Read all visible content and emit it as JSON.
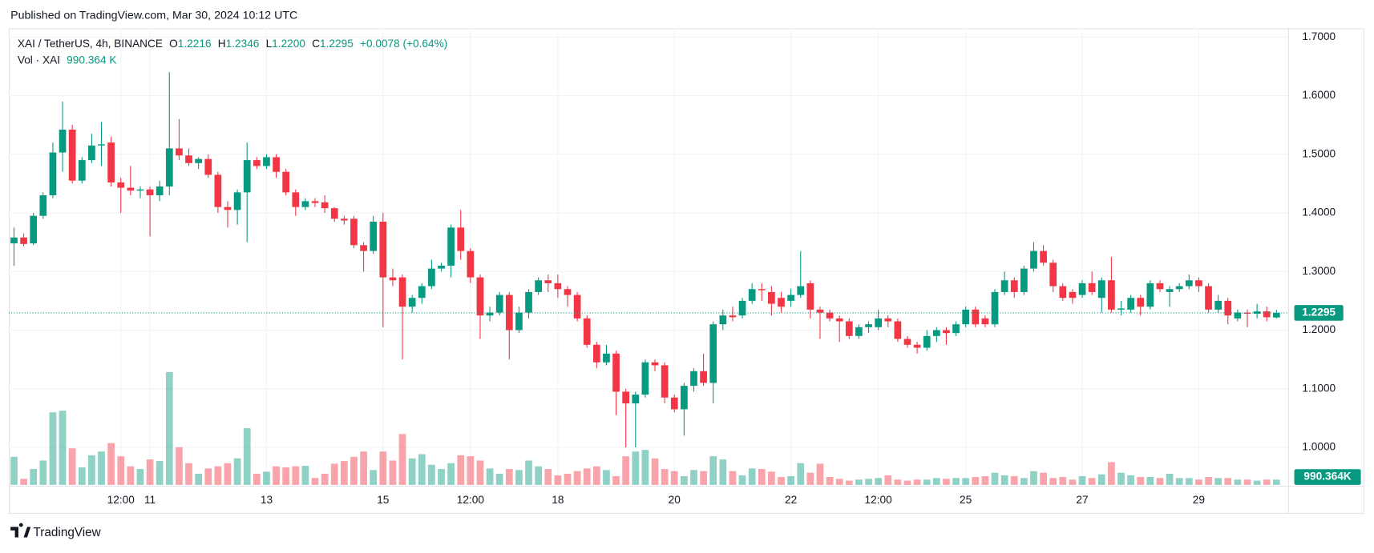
{
  "chart_data": {
    "type": "candlestick",
    "published": "Published on TradingView.com, Mar 30, 2024 10:12 UTC",
    "brand": "TradingView",
    "legend": {
      "symbol": "XAI / TetherUS, 4h, BINANCE",
      "items": [
        {
          "key": "O",
          "value": "1.2216"
        },
        {
          "key": "H",
          "value": "1.2346"
        },
        {
          "key": "L",
          "value": "1.2200"
        },
        {
          "key": "C",
          "value": "1.2295"
        }
      ],
      "change": "+0.0078 (+0.64%)",
      "volume_label": "Vol · XAI",
      "volume_value": "990.364 K"
    },
    "volume_tag": "990.364K",
    "up_color": "#089981",
    "down_color": "#f23645",
    "grid": true,
    "ylim": [
      0.936,
      1.715
    ],
    "yticks": [
      {
        "value": 1.0,
        "label": "1.0000"
      },
      {
        "value": 1.1,
        "label": "1.1000"
      },
      {
        "value": 1.2,
        "label": "1.2000"
      },
      {
        "value": 1.3,
        "label": "1.3000"
      },
      {
        "value": 1.4,
        "label": "1.4000"
      },
      {
        "value": 1.5,
        "label": "1.5000"
      },
      {
        "value": 1.6,
        "label": "1.6000"
      },
      {
        "value": 1.7,
        "label": "1.7000"
      }
    ],
    "xlim": [
      -0.54,
      131.2
    ],
    "xticks": [
      {
        "value": 11,
        "label": "12:00"
      },
      {
        "value": 14,
        "label": "11"
      },
      {
        "value": 26,
        "label": "13"
      },
      {
        "value": 38,
        "label": "15"
      },
      {
        "value": 47,
        "label": "12:00"
      },
      {
        "value": 56,
        "label": "18"
      },
      {
        "value": 68,
        "label": "20"
      },
      {
        "value": 80,
        "label": "22"
      },
      {
        "value": 89,
        "label": "12:00"
      },
      {
        "value": 98,
        "label": "25"
      },
      {
        "value": 110,
        "label": "27"
      },
      {
        "value": 122,
        "label": "29"
      }
    ],
    "open": [
      1.348,
      1.358,
      1.348,
      1.395,
      1.43,
      1.503,
      1.542,
      1.455,
      1.49,
      1.515,
      1.52,
      1.452,
      1.443,
      1.438,
      1.44,
      1.43,
      1.445,
      1.51,
      1.498,
      1.485,
      1.492,
      1.465,
      1.41,
      1.405,
      1.435,
      1.49,
      1.48,
      1.495,
      1.47,
      1.435,
      1.41,
      1.42,
      1.418,
      1.408,
      1.39,
      1.39,
      1.345,
      1.335,
      1.385,
      1.29,
      1.29,
      1.24,
      1.255,
      1.275,
      1.305,
      1.31,
      1.375,
      1.335,
      1.29,
      1.225,
      1.23,
      1.26,
      1.2,
      1.23,
      1.265,
      1.285,
      1.28,
      1.27,
      1.26,
      1.22,
      1.175,
      1.145,
      1.16,
      1.095,
      1.075,
      1.09,
      1.145,
      1.14,
      1.085,
      1.065,
      1.105,
      1.13,
      1.11,
      1.21,
      1.225,
      1.225,
      1.25,
      1.27,
      1.265,
      1.255,
      1.25,
      1.26,
      1.28,
      1.235,
      1.23,
      1.22,
      1.215,
      1.19,
      1.205,
      1.205,
      1.22,
      1.215,
      1.185,
      1.175,
      1.17,
      1.19,
      1.2,
      1.195,
      1.21,
      1.235,
      1.22,
      1.21,
      1.265,
      1.285,
      1.265,
      1.305,
      1.335,
      1.315,
      1.275,
      1.265,
      1.26,
      1.28,
      1.255,
      1.285,
      1.235,
      1.235,
      1.255,
      1.24,
      1.28,
      1.265,
      1.27,
      1.275,
      1.285,
      1.275,
      1.235,
      1.25,
      1.22,
      1.23,
      1.228,
      1.232,
      1.2216
    ],
    "high": [
      1.375,
      1.365,
      1.4,
      1.435,
      1.52,
      1.59,
      1.55,
      1.495,
      1.535,
      1.555,
      1.53,
      1.46,
      1.48,
      1.445,
      1.445,
      1.455,
      1.64,
      1.56,
      1.51,
      1.495,
      1.5,
      1.47,
      1.42,
      1.44,
      1.52,
      1.495,
      1.5,
      1.5,
      1.475,
      1.44,
      1.425,
      1.425,
      1.43,
      1.41,
      1.395,
      1.395,
      1.35,
      1.395,
      1.4,
      1.305,
      1.295,
      1.26,
      1.28,
      1.32,
      1.315,
      1.38,
      1.405,
      1.34,
      1.295,
      1.24,
      1.265,
      1.265,
      1.24,
      1.27,
      1.29,
      1.295,
      1.295,
      1.275,
      1.265,
      1.225,
      1.18,
      1.175,
      1.165,
      1.1,
      1.095,
      1.15,
      1.15,
      1.145,
      1.09,
      1.11,
      1.135,
      1.16,
      1.215,
      1.235,
      1.24,
      1.255,
      1.28,
      1.28,
      1.275,
      1.265,
      1.27,
      1.335,
      1.285,
      1.24,
      1.235,
      1.225,
      1.22,
      1.21,
      1.215,
      1.235,
      1.225,
      1.22,
      1.19,
      1.18,
      1.2,
      1.205,
      1.205,
      1.215,
      1.24,
      1.24,
      1.225,
      1.27,
      1.3,
      1.29,
      1.31,
      1.35,
      1.345,
      1.32,
      1.28,
      1.27,
      1.285,
      1.3,
      1.29,
      1.325,
      1.25,
      1.26,
      1.26,
      1.285,
      1.285,
      1.275,
      1.28,
      1.295,
      1.29,
      1.28,
      1.26,
      1.255,
      1.235,
      1.235,
      1.245,
      1.24,
      1.2346
    ],
    "low": [
      1.31,
      1.343,
      1.345,
      1.39,
      1.425,
      1.47,
      1.45,
      1.45,
      1.485,
      1.48,
      1.445,
      1.4,
      1.43,
      1.425,
      1.36,
      1.42,
      1.43,
      1.49,
      1.48,
      1.475,
      1.46,
      1.4,
      1.375,
      1.38,
      1.35,
      1.475,
      1.475,
      1.46,
      1.43,
      1.395,
      1.405,
      1.41,
      1.4,
      1.385,
      1.38,
      1.34,
      1.3,
      1.33,
      1.205,
      1.275,
      1.15,
      1.23,
      1.245,
      1.27,
      1.3,
      1.29,
      1.32,
      1.28,
      1.185,
      1.215,
      1.225,
      1.15,
      1.195,
      1.22,
      1.26,
      1.265,
      1.255,
      1.24,
      1.215,
      1.17,
      1.135,
      1.14,
      1.055,
      1.0,
      1.0,
      1.085,
      1.13,
      1.075,
      1.06,
      1.02,
      1.095,
      1.105,
      1.075,
      1.2,
      1.215,
      1.22,
      1.245,
      1.25,
      1.225,
      1.23,
      1.24,
      1.255,
      1.22,
      1.185,
      1.215,
      1.18,
      1.185,
      1.185,
      1.195,
      1.2,
      1.205,
      1.18,
      1.17,
      1.16,
      1.165,
      1.18,
      1.175,
      1.19,
      1.205,
      1.205,
      1.205,
      1.205,
      1.26,
      1.255,
      1.26,
      1.3,
      1.31,
      1.265,
      1.25,
      1.245,
      1.255,
      1.26,
      1.23,
      1.23,
      1.225,
      1.23,
      1.225,
      1.235,
      1.265,
      1.24,
      1.265,
      1.27,
      1.265,
      1.23,
      1.23,
      1.21,
      1.215,
      1.205,
      1.22,
      1.215,
      1.22
    ],
    "close": [
      1.358,
      1.347,
      1.395,
      1.43,
      1.503,
      1.542,
      1.455,
      1.49,
      1.515,
      1.517,
      1.452,
      1.443,
      1.438,
      1.44,
      1.43,
      1.445,
      1.51,
      1.498,
      1.485,
      1.492,
      1.465,
      1.41,
      1.405,
      1.435,
      1.49,
      1.48,
      1.495,
      1.47,
      1.435,
      1.41,
      1.42,
      1.417,
      1.408,
      1.39,
      1.387,
      1.345,
      1.335,
      1.385,
      1.29,
      1.285,
      1.24,
      1.255,
      1.275,
      1.305,
      1.31,
      1.375,
      1.335,
      1.29,
      1.225,
      1.23,
      1.26,
      1.2,
      1.23,
      1.265,
      1.285,
      1.28,
      1.27,
      1.26,
      1.22,
      1.175,
      1.145,
      1.16,
      1.095,
      1.075,
      1.09,
      1.145,
      1.14,
      1.085,
      1.065,
      1.105,
      1.13,
      1.11,
      1.21,
      1.225,
      1.222,
      1.25,
      1.27,
      1.268,
      1.245,
      1.24,
      1.26,
      1.275,
      1.235,
      1.23,
      1.22,
      1.215,
      1.19,
      1.205,
      1.21,
      1.22,
      1.215,
      1.185,
      1.175,
      1.17,
      1.19,
      1.2,
      1.195,
      1.21,
      1.235,
      1.21,
      1.21,
      1.265,
      1.285,
      1.265,
      1.305,
      1.335,
      1.315,
      1.275,
      1.255,
      1.255,
      1.28,
      1.265,
      1.285,
      1.235,
      1.237,
      1.255,
      1.24,
      1.28,
      1.27,
      1.27,
      1.275,
      1.285,
      1.275,
      1.235,
      1.25,
      1.225,
      1.23,
      1.228,
      1.232,
      1.222,
      1.2295
    ],
    "volume": [
      5300,
      1150,
      3000,
      4600,
      13700,
      14000,
      6900,
      3300,
      5600,
      6300,
      7900,
      5400,
      3500,
      3000,
      4800,
      4500,
      21300,
      7100,
      4100,
      2100,
      3100,
      3500,
      4100,
      5000,
      10700,
      2100,
      2500,
      3500,
      3300,
      3500,
      3600,
      1300,
      2100,
      4000,
      4500,
      5300,
      6300,
      2800,
      6300,
      4600,
      9600,
      5000,
      5800,
      3800,
      3000,
      4100,
      5600,
      5400,
      4600,
      3100,
      2100,
      3000,
      2800,
      4600,
      3500,
      3000,
      1800,
      2100,
      2600,
      3100,
      3500,
      2800,
      1650,
      5400,
      6300,
      6600,
      5000,
      3000,
      2600,
      1650,
      2800,
      2600,
      5400,
      4800,
      2600,
      1800,
      3100,
      3000,
      2500,
      1500,
      1650,
      4100,
      2300,
      4000,
      1500,
      1150,
      800,
      1000,
      1150,
      1300,
      1800,
      1000,
      800,
      1000,
      1000,
      1300,
      1150,
      1300,
      1300,
      1500,
      1650,
      2300,
      1800,
      1650,
      1300,
      2600,
      2300,
      1300,
      1500,
      1000,
      1650,
      1300,
      2000,
      4300,
      2300,
      1800,
      1500,
      1500,
      1300,
      2100,
      1300,
      1300,
      1000,
      1500,
      1300,
      1300,
      1000,
      1000,
      800,
      1000,
      990.364
    ]
  }
}
